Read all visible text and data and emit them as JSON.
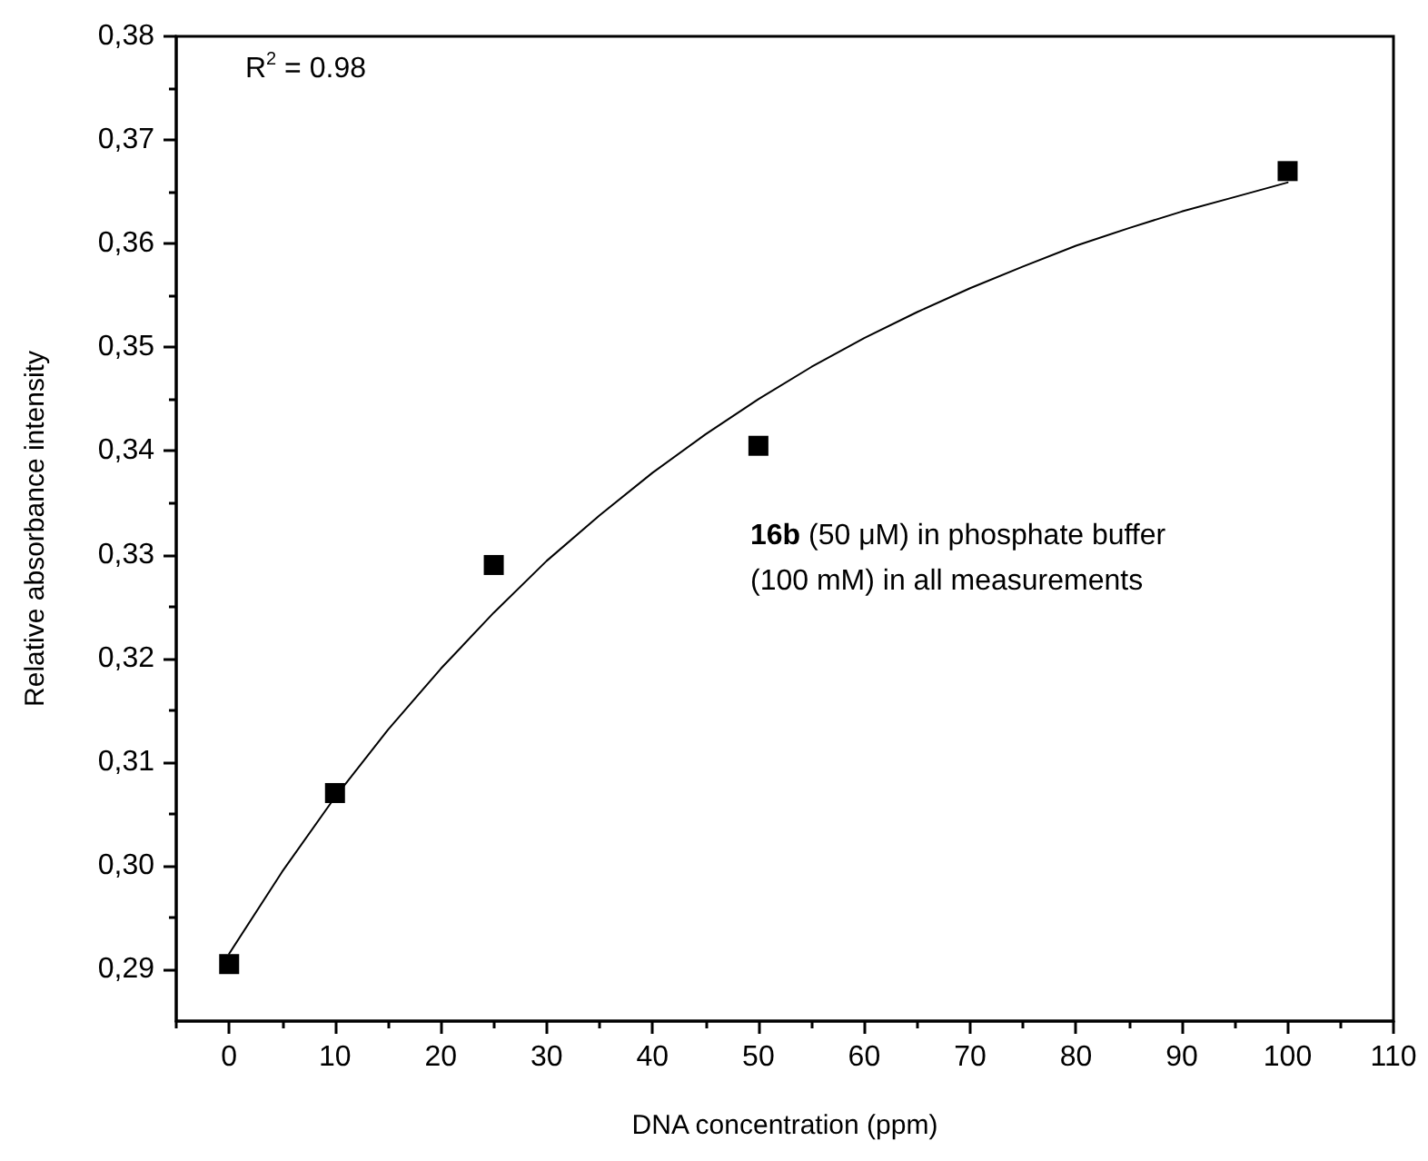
{
  "chart_data": {
    "type": "scatter",
    "xlabel": "DNA concentration (ppm)",
    "ylabel": "Relative absorbance intensity",
    "annotations": [
      "R$^{2}$ = 0.98",
      "16b (50 μM) in phosphate buffer",
      "(100 mM) in all measurements"
    ],
    "marker": "square",
    "grid": false,
    "xlim": [
      -5,
      110
    ],
    "xticks": [
      {
        "value": -5,
        "label": null
      },
      0,
      {
        "value": 5,
        "label": null
      },
      10,
      {
        "value": 15,
        "label": null
      },
      20,
      {
        "value": 25,
        "label": null
      },
      30,
      {
        "value": 35,
        "label": null
      },
      40,
      {
        "value": 45,
        "label": null
      },
      50,
      {
        "value": 55,
        "label": null
      },
      60,
      {
        "value": 65,
        "label": null
      },
      70,
      {
        "value": 75,
        "label": null
      },
      80,
      {
        "value": 85,
        "label": null
      },
      90,
      {
        "value": 95,
        "label": null
      },
      100,
      {
        "value": 105,
        "label": null
      },
      110
    ],
    "ylim": [
      0.285,
      0.38
    ],
    "yticks": [
      {
        "value": 0.29,
        "label": "0,29"
      },
      {
        "value": 0.295,
        "label": null
      },
      {
        "value": 0.3,
        "label": "0,30"
      },
      {
        "value": 0.305,
        "label": null
      },
      {
        "value": 0.31,
        "label": "0,31"
      },
      {
        "value": 0.315,
        "label": null
      },
      {
        "value": 0.32,
        "label": "0,32"
      },
      {
        "value": 0.325,
        "label": null
      },
      {
        "value": 0.33,
        "label": "0,33"
      },
      {
        "value": 0.335,
        "label": null
      },
      {
        "value": 0.34,
        "label": "0,34"
      },
      {
        "value": 0.345,
        "label": null
      },
      {
        "value": 0.35,
        "label": "0,35"
      },
      {
        "value": 0.355,
        "label": null
      },
      {
        "value": 0.36,
        "label": "0,36"
      },
      {
        "value": 0.365,
        "label": null
      },
      {
        "value": 0.37,
        "label": "0,37"
      },
      {
        "value": 0.375,
        "label": null
      },
      {
        "value": 0.38,
        "label": "0,38"
      }
    ],
    "series": [
      {
        "type": "scatter",
        "color": "#000000",
        "x": [
          0,
          10,
          25,
          50,
          100
        ],
        "values": [
          0.2905,
          0.307,
          0.329,
          0.3405,
          0.367
        ]
      },
      {
        "type": "line",
        "color": "#000000",
        "marker": "none",
        "line_style": "solid",
        "x": [
          0,
          5,
          10,
          15,
          20,
          25,
          30,
          35,
          40,
          45,
          50,
          55,
          60,
          65,
          70,
          75,
          80,
          85,
          90,
          95,
          100
        ],
        "values": [
          0.2915,
          0.2994,
          0.3066,
          0.3131,
          0.319,
          0.3244,
          0.3294,
          0.3338,
          0.3379,
          0.3416,
          0.345,
          0.3481,
          0.3509,
          0.3534,
          0.3557,
          0.3578,
          0.3598,
          0.3615,
          0.3631,
          0.3645,
          0.3659
        ]
      }
    ]
  }
}
